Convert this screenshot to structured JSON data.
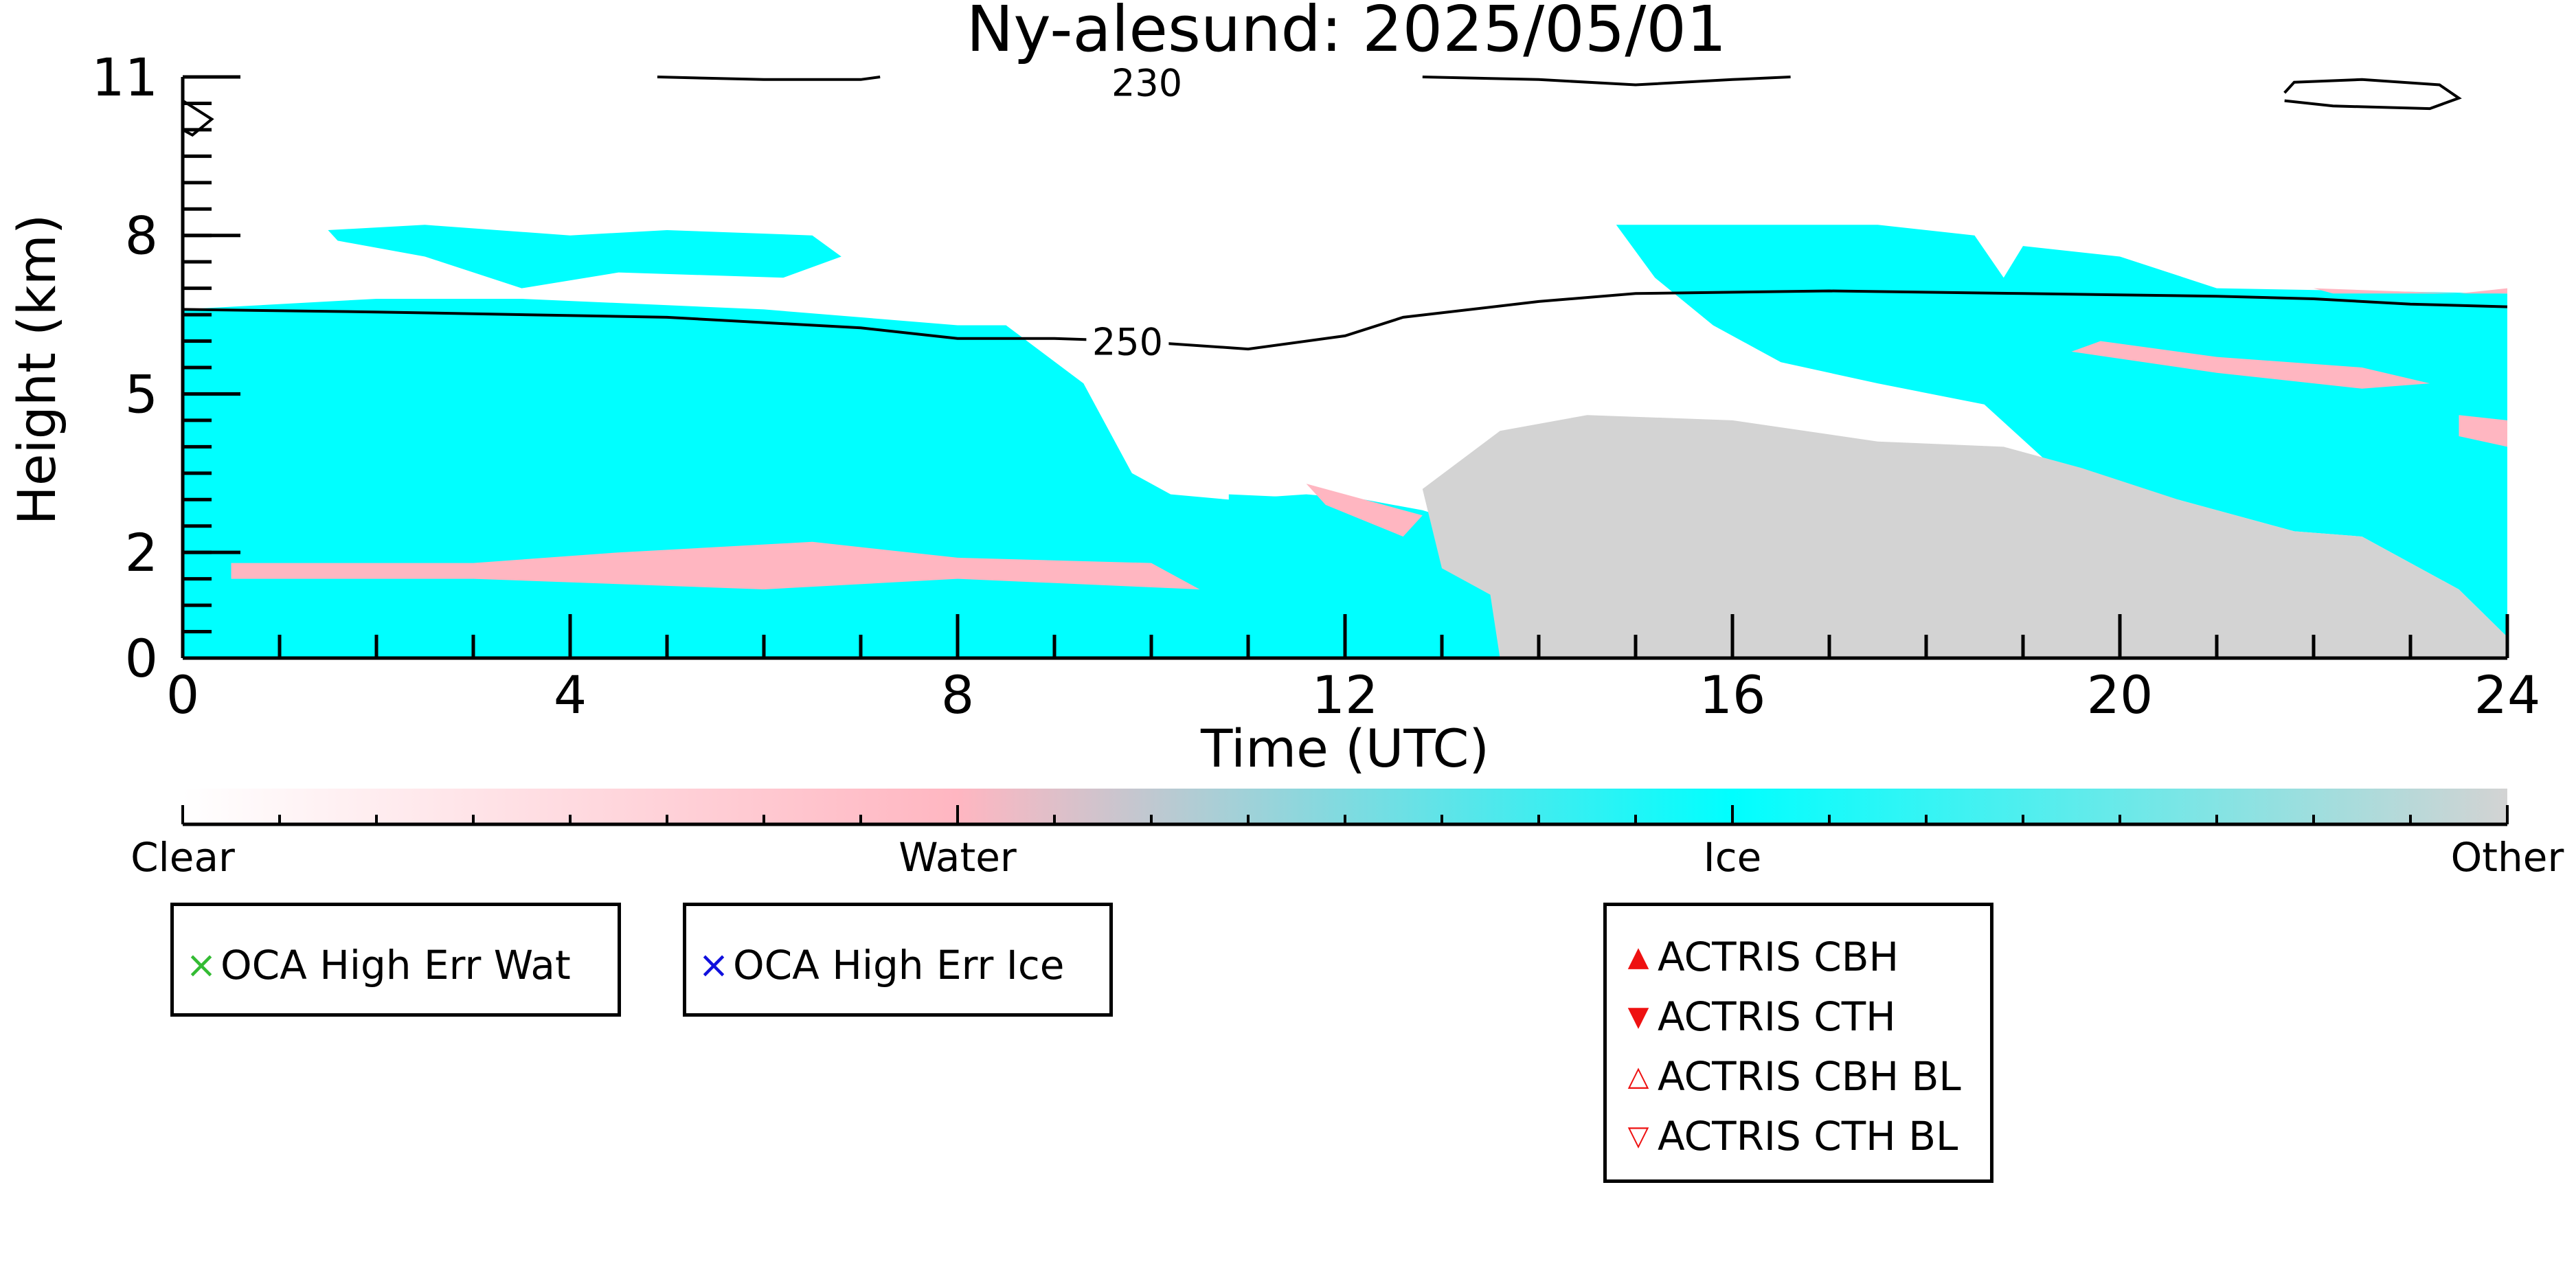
{
  "chart_data": {
    "type": "heatmap",
    "title": "Ny-alesund: 2025/05/01",
    "xlabel": "Time (UTC)",
    "ylabel": "Height (km)",
    "xlim": [
      0,
      24
    ],
    "ylim": [
      0,
      11
    ],
    "x_ticks": [
      "0",
      "4",
      "8",
      "12",
      "16",
      "20",
      "24"
    ],
    "y_ticks": [
      "0",
      "2",
      "5",
      "8",
      "11"
    ],
    "y_tick_values": [
      0,
      2,
      5,
      8,
      11
    ],
    "categories": [
      "Clear",
      "Water",
      "Ice",
      "Other"
    ],
    "category_colors": {
      "Clear": "#ffffff",
      "Water": "#ffb6c1",
      "Ice": "#00ffff",
      "Other": "#d3d3d3"
    },
    "regions": [
      {
        "class": "Ice",
        "points": [
          [
            0,
            6.6
          ],
          [
            2,
            6.8
          ],
          [
            3.5,
            6.8
          ],
          [
            6,
            6.6
          ],
          [
            8,
            6.3
          ],
          [
            8.5,
            6.3
          ],
          [
            9.3,
            5.2
          ],
          [
            9.8,
            3.5
          ],
          [
            10.2,
            3.1
          ],
          [
            10.8,
            3.0
          ],
          [
            11.6,
            3.1
          ],
          [
            12.2,
            3.0
          ],
          [
            12.8,
            2.8
          ],
          [
            13.5,
            2.4
          ],
          [
            13.6,
            0
          ],
          [
            0,
            0
          ]
        ]
      },
      {
        "class": "Ice",
        "points": [
          [
            1.5,
            8.1
          ],
          [
            2.5,
            8.2
          ],
          [
            4,
            8.0
          ],
          [
            5,
            8.1
          ],
          [
            6.5,
            8.0
          ],
          [
            6.8,
            7.6
          ],
          [
            6.2,
            7.2
          ],
          [
            4.5,
            7.3
          ],
          [
            3.5,
            7.0
          ],
          [
            2.5,
            7.6
          ],
          [
            1.6,
            7.9
          ]
        ]
      },
      {
        "class": "Ice",
        "points": [
          [
            10.8,
            3.1
          ],
          [
            12,
            3.0
          ],
          [
            12.6,
            2.6
          ],
          [
            13,
            1.7
          ],
          [
            13.5,
            1.2
          ],
          [
            13.5,
            0.5
          ],
          [
            11.2,
            0.5
          ],
          [
            10.8,
            1.8
          ]
        ]
      },
      {
        "class": "Ice",
        "points": [
          [
            14.8,
            8.2
          ],
          [
            17.5,
            8.2
          ],
          [
            18.5,
            8.0
          ],
          [
            18.8,
            7.2
          ],
          [
            19,
            7.8
          ],
          [
            20,
            7.6
          ],
          [
            21,
            7.0
          ],
          [
            24,
            6.9
          ],
          [
            24,
            0.4
          ],
          [
            23.5,
            1.3
          ],
          [
            22.5,
            2.3
          ],
          [
            21.8,
            2.4
          ],
          [
            20.6,
            3.0
          ],
          [
            19.8,
            2.3
          ],
          [
            19.2,
            3.8
          ],
          [
            18.6,
            4.8
          ],
          [
            17.5,
            5.2
          ],
          [
            16.5,
            5.6
          ],
          [
            15.8,
            6.3
          ],
          [
            15.2,
            7.2
          ]
        ]
      },
      {
        "class": "Other",
        "points": [
          [
            12.8,
            3.2
          ],
          [
            13.6,
            4.3
          ],
          [
            14.5,
            4.6
          ],
          [
            16,
            4.5
          ],
          [
            17.5,
            4.1
          ],
          [
            18.8,
            4.0
          ],
          [
            19.6,
            3.6
          ],
          [
            20.6,
            3.0
          ],
          [
            21.8,
            2.4
          ],
          [
            22.5,
            2.3
          ],
          [
            23.5,
            1.3
          ],
          [
            24,
            0.4
          ],
          [
            24,
            0
          ],
          [
            13.6,
            0
          ],
          [
            13.5,
            1.2
          ],
          [
            13,
            1.7
          ]
        ]
      },
      {
        "class": "Water",
        "points": [
          [
            0.5,
            1.8
          ],
          [
            3,
            1.8
          ],
          [
            4.5,
            2.0
          ],
          [
            6.5,
            2.2
          ],
          [
            8,
            1.9
          ],
          [
            10,
            1.8
          ],
          [
            10.5,
            1.3
          ],
          [
            8,
            1.5
          ],
          [
            6,
            1.3
          ],
          [
            3,
            1.5
          ],
          [
            0.5,
            1.5
          ]
        ]
      },
      {
        "class": "Water",
        "points": [
          [
            11.6,
            3.3
          ],
          [
            12.2,
            3.0
          ],
          [
            12.8,
            2.7
          ],
          [
            12.6,
            2.3
          ],
          [
            11.8,
            2.9
          ]
        ]
      },
      {
        "class": "Water",
        "points": [
          [
            19.5,
            5.8
          ],
          [
            21,
            5.4
          ],
          [
            22.5,
            5.1
          ],
          [
            23.2,
            5.2
          ],
          [
            22.5,
            5.5
          ],
          [
            21,
            5.7
          ],
          [
            19.8,
            6.0
          ]
        ]
      },
      {
        "class": "Water",
        "points": [
          [
            22,
            7.0
          ],
          [
            23.5,
            6.9
          ],
          [
            24,
            7.0
          ],
          [
            24,
            6.9
          ],
          [
            22.2,
            6.9
          ]
        ]
      },
      {
        "class": "Water",
        "points": [
          [
            23.5,
            4.6
          ],
          [
            24,
            4.5
          ],
          [
            24,
            4.0
          ],
          [
            23.5,
            4.2
          ]
        ]
      }
    ],
    "contours": [
      {
        "label": "250",
        "label_position": [
          9.4,
          6.0
        ],
        "points": [
          [
            0,
            6.6
          ],
          [
            2,
            6.55
          ],
          [
            5,
            6.45
          ],
          [
            7,
            6.25
          ],
          [
            8,
            6.05
          ],
          [
            9,
            6.05
          ],
          [
            9.8,
            6.0
          ],
          [
            11,
            5.85
          ],
          [
            12,
            6.1
          ],
          [
            12.6,
            6.45
          ],
          [
            14,
            6.75
          ],
          [
            15,
            6.9
          ],
          [
            17,
            6.95
          ],
          [
            19,
            6.9
          ],
          [
            21,
            6.85
          ],
          [
            22,
            6.8
          ],
          [
            23,
            6.7
          ],
          [
            24,
            6.65
          ]
        ]
      },
      {
        "label": "230",
        "label_position": [
          9.6,
          10.9
        ],
        "points": [
          [
            4.9,
            11.0
          ],
          [
            6.0,
            10.95
          ],
          [
            7.0,
            10.95
          ],
          [
            7.2,
            11.0
          ]
        ]
      },
      {
        "label": "",
        "label_position": null,
        "points": [
          [
            12.8,
            11.0
          ],
          [
            14,
            10.95
          ],
          [
            15,
            10.85
          ],
          [
            16,
            10.95
          ],
          [
            16.6,
            11.0
          ]
        ]
      },
      {
        "label": "",
        "label_position": null,
        "points": [
          [
            21.7,
            10.55
          ],
          [
            22.2,
            10.45
          ],
          [
            23.2,
            10.4
          ],
          [
            23.5,
            10.6
          ],
          [
            23.3,
            10.85
          ],
          [
            22.5,
            10.95
          ],
          [
            21.8,
            10.9
          ],
          [
            21.7,
            10.7
          ]
        ]
      },
      {
        "label": "",
        "label_position": null,
        "points": [
          [
            0.0,
            10.55
          ],
          [
            0.3,
            10.2
          ],
          [
            0.1,
            9.9
          ],
          [
            0.0,
            10.0
          ]
        ]
      }
    ],
    "colorbar": {
      "labels": [
        "Clear",
        "Water",
        "Ice",
        "Other"
      ],
      "label_positions": [
        0,
        1,
        2,
        3
      ],
      "range": [
        0,
        3
      ],
      "stops": [
        "#ffffff",
        "#ffb6c1",
        "#00ffff",
        "#d3d3d3"
      ]
    },
    "legends": [
      {
        "entries": [
          {
            "label": "OCA High Err Wat",
            "marker": "×",
            "color": "#33bb33"
          }
        ]
      },
      {
        "entries": [
          {
            "label": "OCA High Err Ice",
            "marker": "×",
            "color": "#1010dd"
          }
        ]
      },
      {
        "entries": [
          {
            "label": "ACTRIS CBH",
            "marker": "▲",
            "color": "#ee1111"
          },
          {
            "label": "ACTRIS CTH",
            "marker": "▼",
            "color": "#ee1111"
          },
          {
            "label": "ACTRIS CBH BL",
            "marker": "△",
            "color": "#ee1111"
          },
          {
            "label": "ACTRIS CTH BL",
            "marker": "▽",
            "color": "#ee1111"
          }
        ]
      }
    ]
  }
}
